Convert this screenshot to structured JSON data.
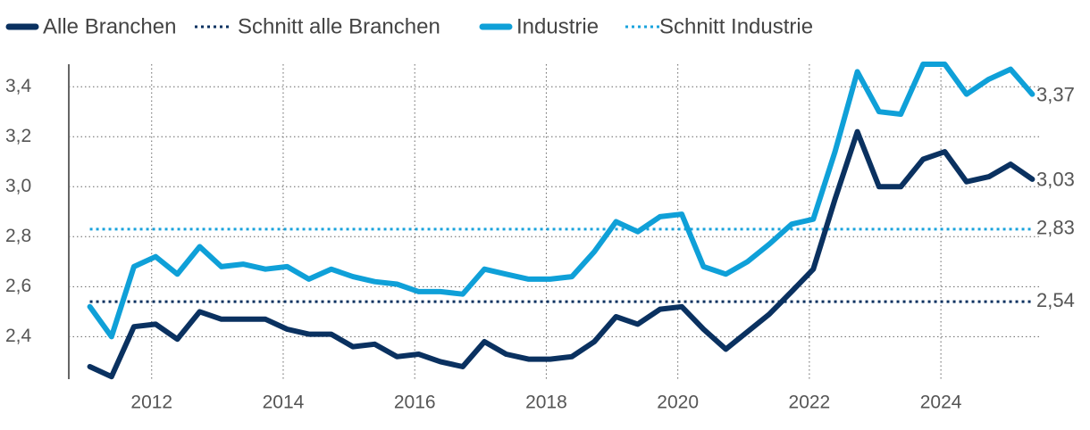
{
  "chart_data": {
    "type": "line",
    "x": [
      2011.06,
      2011.39,
      2011.73,
      2012.06,
      2012.39,
      2012.73,
      2013.06,
      2013.39,
      2013.73,
      2014.06,
      2014.39,
      2014.73,
      2015.06,
      2015.39,
      2015.73,
      2016.06,
      2016.39,
      2016.73,
      2017.06,
      2017.39,
      2017.73,
      2018.06,
      2018.39,
      2018.73,
      2019.06,
      2019.39,
      2019.73,
      2020.06,
      2020.39,
      2020.73,
      2021.06,
      2021.39,
      2021.73,
      2022.06,
      2022.39,
      2022.73,
      2023.06,
      2023.39,
      2023.73,
      2024.06,
      2024.39,
      2024.73,
      2025.06,
      2025.39
    ],
    "series": [
      {
        "name": "Alle Branchen",
        "color": "#0a3160",
        "end_label": "3,03",
        "values": [
          2.28,
          2.24,
          2.44,
          2.45,
          2.39,
          2.5,
          2.47,
          2.47,
          2.47,
          2.43,
          2.41,
          2.41,
          2.36,
          2.37,
          2.32,
          2.33,
          2.3,
          2.28,
          2.38,
          2.33,
          2.31,
          2.31,
          2.32,
          2.38,
          2.48,
          2.45,
          2.51,
          2.52,
          2.43,
          2.35,
          2.42,
          2.49,
          2.58,
          2.67,
          2.95,
          3.22,
          3.0,
          3.0,
          3.11,
          3.14,
          3.02,
          3.04,
          3.09,
          3.03
        ]
      },
      {
        "name": "Schnitt alle Branchen",
        "color": "#0a3160",
        "average": 2.54,
        "average_label": "2,54"
      },
      {
        "name": "Industrie",
        "color": "#0fa0d8",
        "end_label": "3,37",
        "values": [
          2.52,
          2.4,
          2.68,
          2.72,
          2.65,
          2.76,
          2.68,
          2.69,
          2.67,
          2.68,
          2.63,
          2.67,
          2.64,
          2.62,
          2.61,
          2.58,
          2.58,
          2.57,
          2.67,
          2.65,
          2.63,
          2.63,
          2.64,
          2.74,
          2.86,
          2.82,
          2.88,
          2.89,
          2.68,
          2.65,
          2.7,
          2.77,
          2.85,
          2.87,
          3.14,
          3.46,
          3.3,
          3.29,
          3.49,
          3.49,
          3.37,
          3.43,
          3.47,
          3.37
        ]
      },
      {
        "name": "Schnitt Industrie",
        "color": "#1aa3dc",
        "average": 2.83,
        "average_label": "2,83"
      }
    ],
    "xlim": [
      2010.74,
      2025.52
    ],
    "xticks": [
      2012,
      2014,
      2016,
      2018,
      2020,
      2022,
      2024
    ],
    "ylim": [
      2.23,
      3.49
    ],
    "yticks": [
      {
        "value": 2.4,
        "label": "2,4"
      },
      {
        "value": 2.6,
        "label": "2,6"
      },
      {
        "value": 2.8,
        "label": "2,8"
      },
      {
        "value": 3.0,
        "label": "3,0"
      },
      {
        "value": 3.2,
        "label": "3,2"
      },
      {
        "value": 3.4,
        "label": "3,4"
      }
    ],
    "grid": true,
    "legend": "top"
  }
}
